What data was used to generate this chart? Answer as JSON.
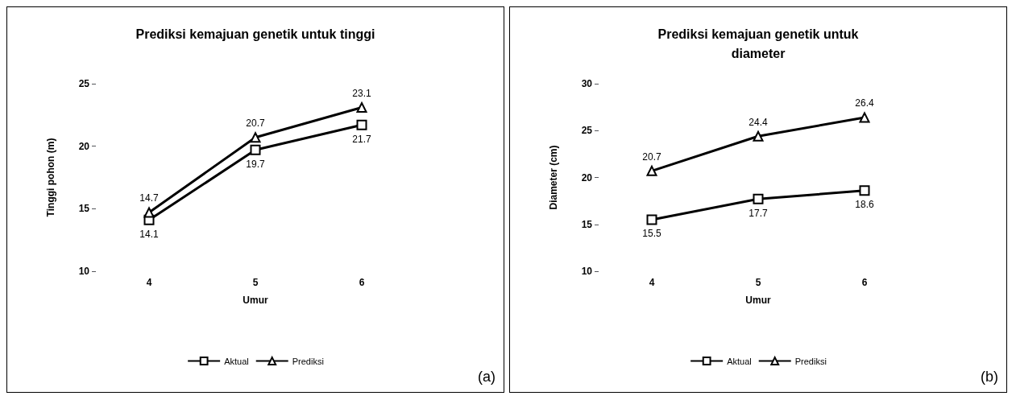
{
  "chart_data": [
    {
      "type": "line",
      "title": "Prediksi kemajuan genetik untuk tinggi",
      "xlabel": "Umur",
      "ylabel": "Tinggi pohon (m)",
      "categories": [
        "4",
        "5",
        "6"
      ],
      "ylim": [
        10,
        25
      ],
      "yticks": [
        10,
        15,
        20,
        25
      ],
      "grid": false,
      "legend": "bottom",
      "data_labels": true,
      "annotations": [
        "(a)"
      ],
      "series": [
        {
          "name": "Aktual",
          "color": "#000000",
          "marker": "square",
          "values": [
            14.1,
            19.7,
            21.7
          ]
        },
        {
          "name": "Prediksi",
          "color": "#000000",
          "marker": "triangle",
          "values": [
            14.7,
            20.7,
            23.1
          ]
        }
      ]
    },
    {
      "type": "line",
      "title": "Prediksi kemajuan genetik untuk\ndiameter",
      "xlabel": "Umur",
      "ylabel": "Diameter (cm)",
      "categories": [
        "4",
        "5",
        "6"
      ],
      "ylim": [
        10,
        30
      ],
      "yticks": [
        10,
        15,
        20,
        25,
        30
      ],
      "grid": false,
      "legend": "bottom",
      "data_labels": true,
      "annotations": [
        "(b)"
      ],
      "series": [
        {
          "name": "Aktual",
          "color": "#000000",
          "marker": "square",
          "values": [
            15.5,
            17.7,
            18.6
          ]
        },
        {
          "name": "Prediksi",
          "color": "#000000",
          "marker": "triangle",
          "values": [
            20.7,
            24.4,
            26.4
          ]
        }
      ]
    }
  ]
}
